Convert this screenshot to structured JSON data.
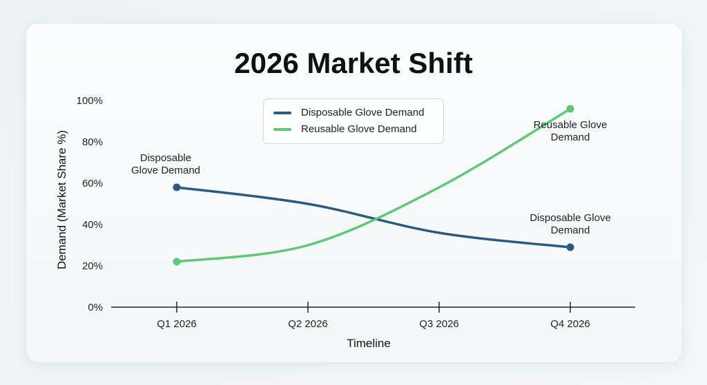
{
  "chart_data": {
    "type": "line",
    "title": "2026 Market Shift",
    "xlabel": "Timeline",
    "ylabel": "Demand (Market Share %)",
    "categories": [
      "Q1 2026",
      "Q2 2026",
      "Q3 2026",
      "Q4 2026"
    ],
    "ylim": [
      0,
      100
    ],
    "yticks": [
      "0%",
      "20%",
      "40%",
      "60%",
      "80%",
      "100%"
    ],
    "grid": false,
    "legend_position": "top-center",
    "series": [
      {
        "name": "Disposable Glove Demand",
        "color": "#2b5a80",
        "values": [
          58,
          50,
          36,
          29
        ]
      },
      {
        "name": "Reusable Glove Demand",
        "color": "#5cc878",
        "values": [
          22,
          30,
          58,
          96
        ]
      }
    ],
    "annotations": [
      {
        "text": "Disposable\nGlove Demand",
        "series": 0,
        "point": 0
      },
      {
        "text": "Disposable Glove\nDemand",
        "series": 0,
        "point": 3
      },
      {
        "text": "Reusable Glove\nDemand",
        "series": 1,
        "point": 3
      }
    ]
  }
}
